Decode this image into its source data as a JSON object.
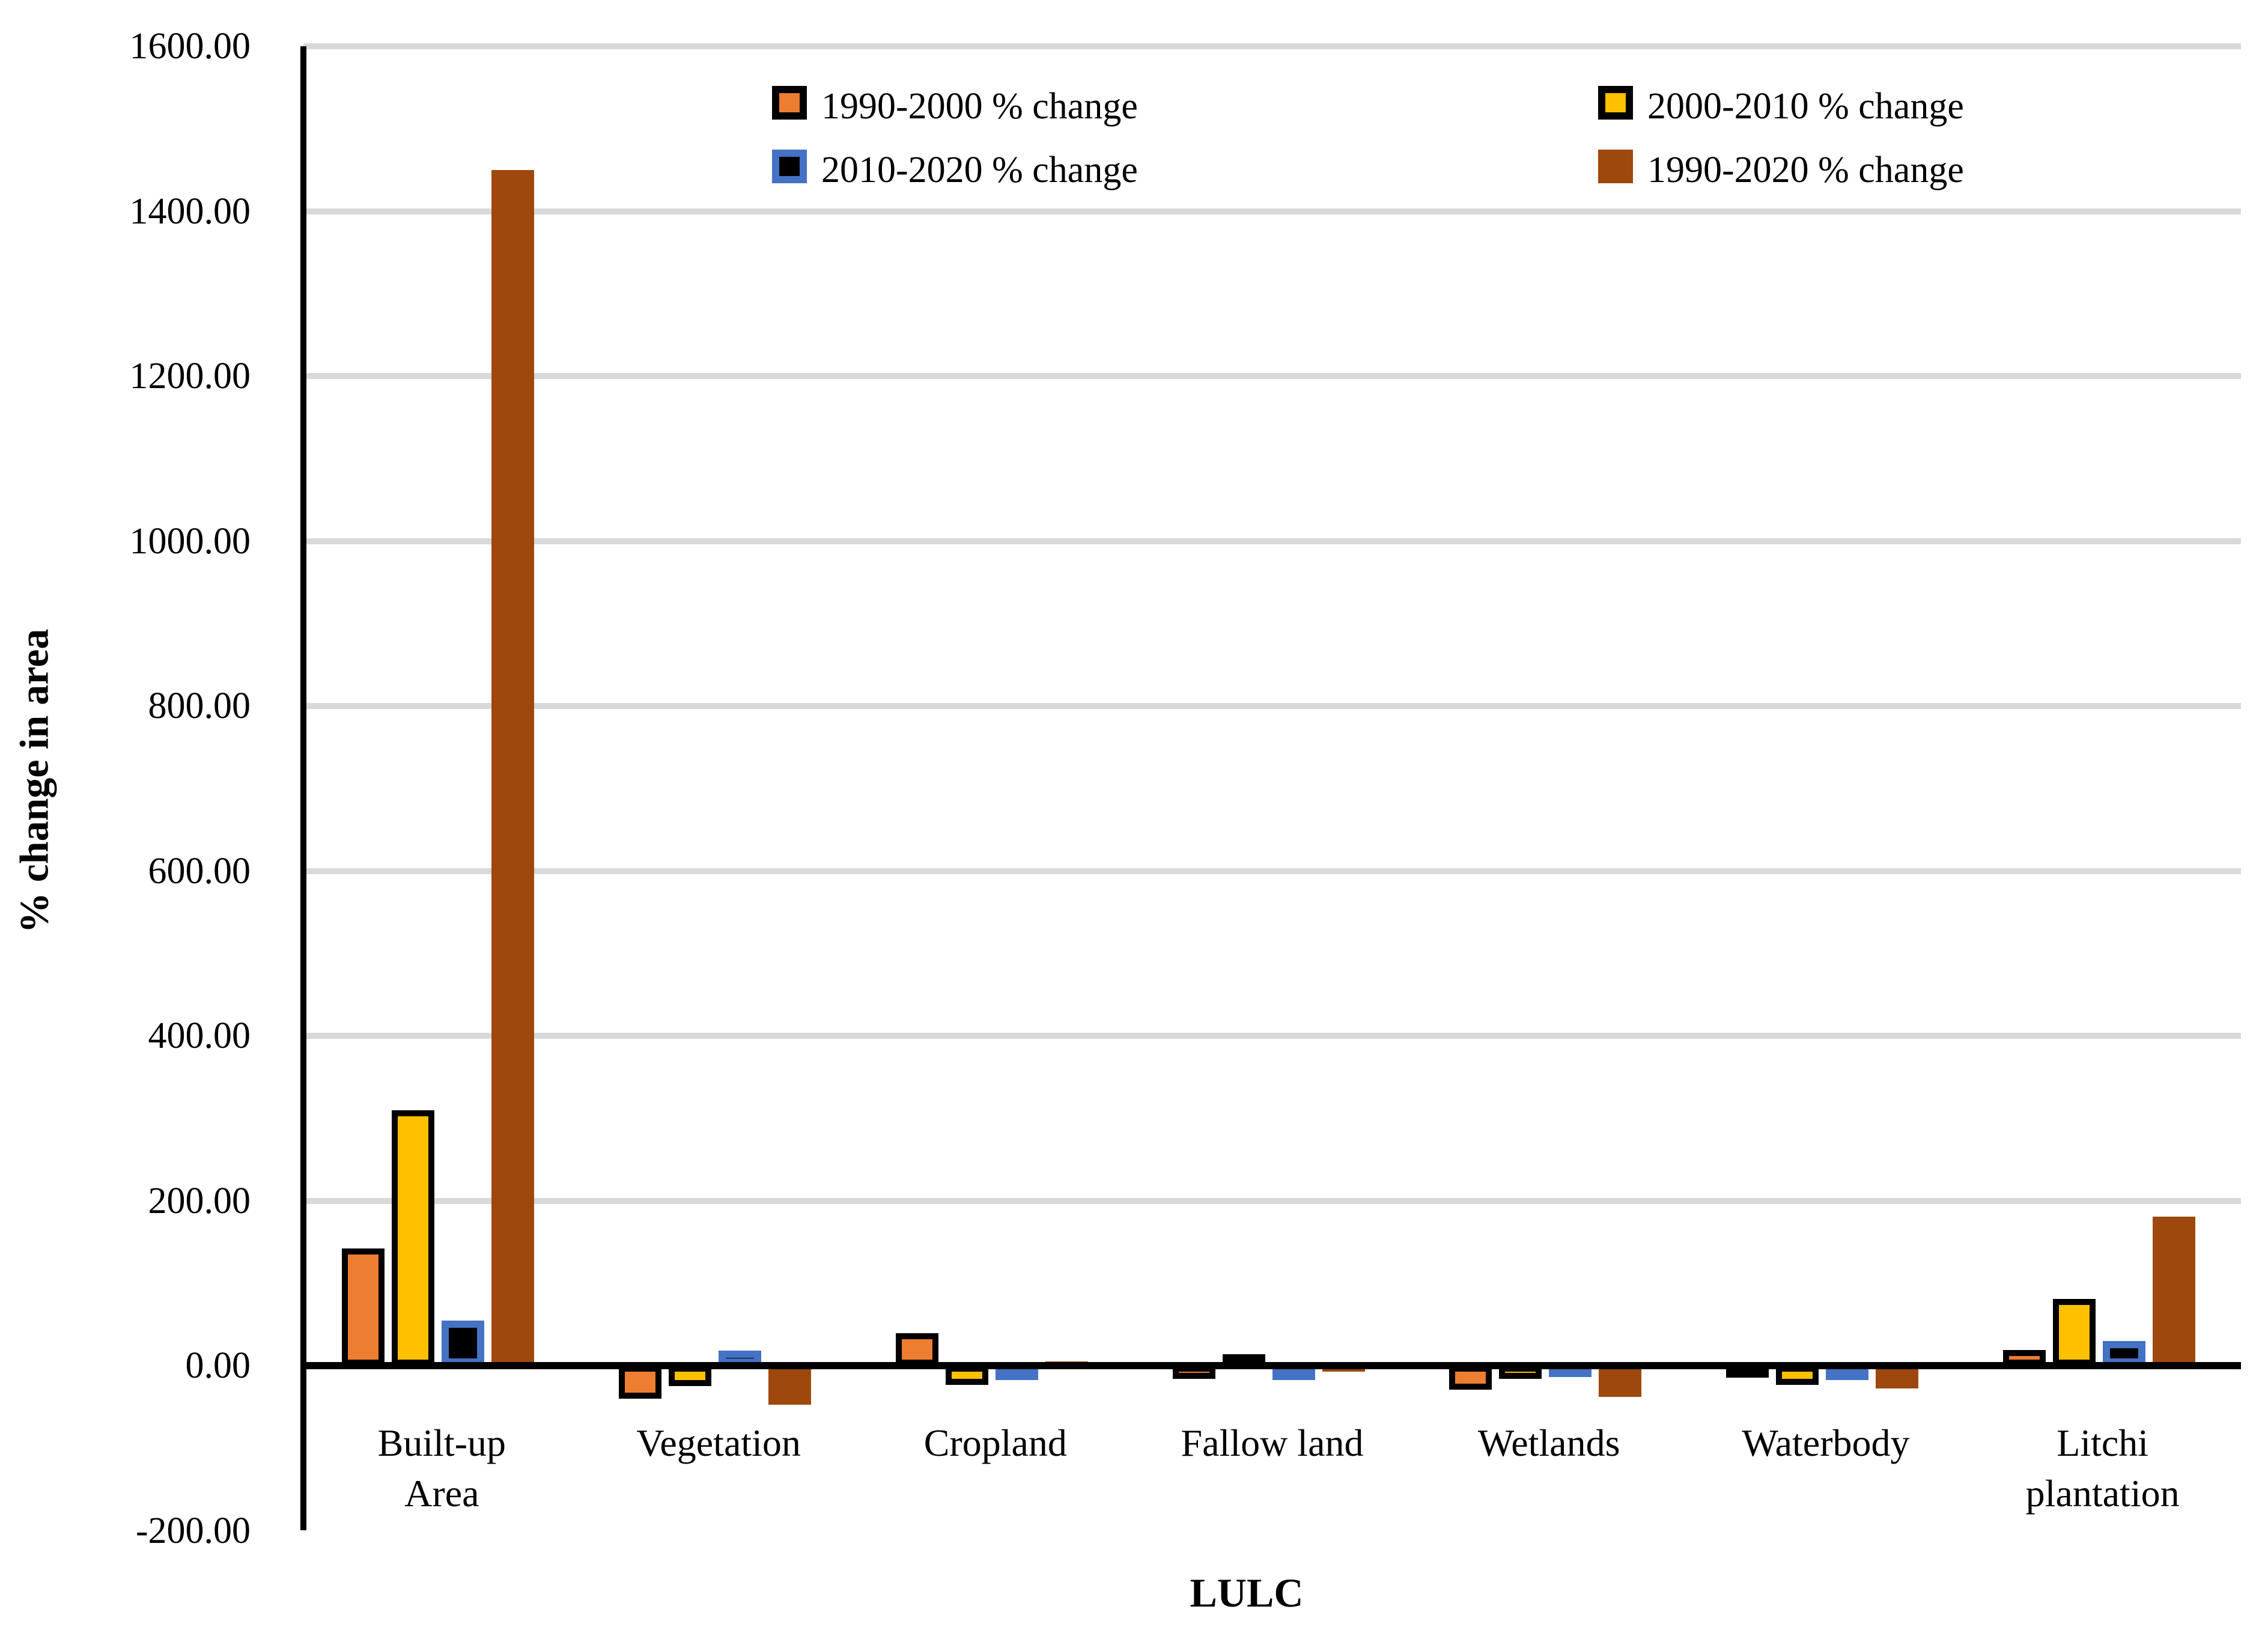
{
  "y_axis": {
    "title": "% change in area",
    "tick_labels": [
      "1600.00",
      "1400.00",
      "1200.00",
      "1000.00",
      "800.00",
      "600.00",
      "400.00",
      "200.00",
      "0.00",
      "-200.00"
    ],
    "tick_values": [
      1600,
      1400,
      1200,
      1000,
      800,
      600,
      400,
      200,
      0,
      -200
    ],
    "min": -200,
    "max": 1600,
    "step": 200
  },
  "x_axis": {
    "title": "LULC",
    "categories": [
      {
        "label": "Built-up Area",
        "lines": [
          "Built-up",
          "Area"
        ]
      },
      {
        "label": "Vegetation",
        "lines": [
          "Vegetation"
        ]
      },
      {
        "label": "Cropland",
        "lines": [
          "Cropland"
        ]
      },
      {
        "label": "Fallow land",
        "lines": [
          "Fallow land"
        ]
      },
      {
        "label": "Wetlands",
        "lines": [
          "Wetlands"
        ]
      },
      {
        "label": "Waterbody",
        "lines": [
          "Waterbody"
        ]
      },
      {
        "label": "Litchi plantation",
        "lines": [
          "Litchi",
          "plantation"
        ]
      }
    ]
  },
  "legend": {
    "items": [
      {
        "label": "1990-2000 % change",
        "fill": "#ED7D31",
        "border_color": "#000000",
        "border_width": 12,
        "row": 0,
        "col": 0
      },
      {
        "label": "2000-2010 % change",
        "fill": "#FFC000",
        "border_color": "#000000",
        "border_width": 12,
        "row": 0,
        "col": 1
      },
      {
        "label": "2010-2020 % change",
        "fill": "#000000",
        "border_color": "#4472C4",
        "border_width": 12,
        "row": 1,
        "col": 0
      },
      {
        "label": "1990-2020 % change",
        "fill": "#9E480E",
        "border_color": "none",
        "border_width": 0,
        "row": 1,
        "col": 1
      }
    ]
  },
  "chart_data": {
    "type": "bar",
    "title": "",
    "xlabel": "LULC",
    "ylabel": "% change in area",
    "ylim": [
      -200,
      1600
    ],
    "grid": true,
    "legend_position": "top-inside",
    "categories": [
      "Built-up Area",
      "Vegetation",
      "Cropland",
      "Fallow land",
      "Wetlands",
      "Waterbody",
      "Litchi plantation"
    ],
    "series": [
      {
        "name": "1990-2000 % change",
        "fill": "#ED7D31",
        "border_color": "#000000",
        "border_width": 10,
        "values": [
          142,
          -40,
          39,
          -16,
          -29,
          -8,
          19
        ]
      },
      {
        "name": "2000-2010 % change",
        "fill": "#FFC000",
        "border_color": "#000000",
        "border_width": 10,
        "values": [
          310,
          -25,
          -23,
          14,
          -16,
          -23,
          81
        ]
      },
      {
        "name": "2010-2020 % change",
        "fill": "#000000",
        "border_color": "#4472C4",
        "border_width": 12,
        "values": [
          55,
          18,
          -6,
          -7,
          4,
          -2,
          30
        ]
      },
      {
        "name": "1990-2020 % change",
        "fill": "#9E480E",
        "border_color": "none",
        "border_width": 0,
        "values": [
          1450,
          -47,
          5,
          -7,
          -38,
          -28,
          181
        ]
      }
    ]
  },
  "colors": {
    "gridline": "#D9D9D9",
    "axis": "#000000",
    "background": "#FFFFFF"
  }
}
